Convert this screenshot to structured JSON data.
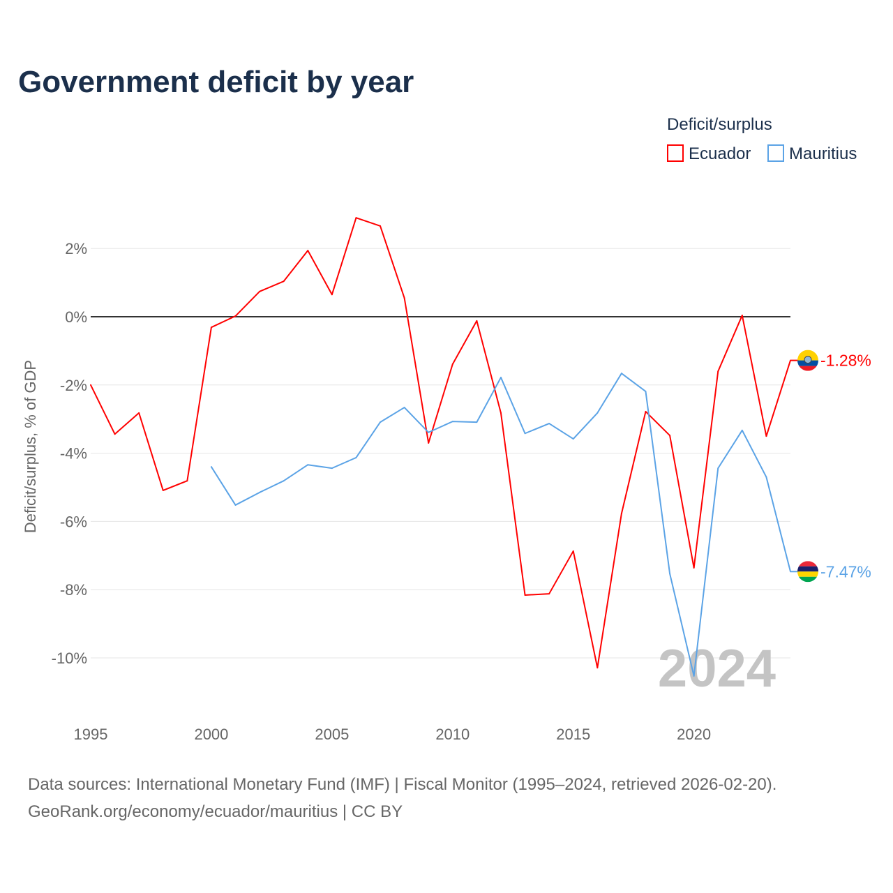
{
  "chart_data": {
    "type": "line",
    "title": "Government deficit by year",
    "ylabel": "Deficit/surplus, % of GDP",
    "xlabel": "",
    "xlim": [
      1995,
      2024
    ],
    "ylim": [
      -11,
      3
    ],
    "x_ticks": [
      1995,
      2000,
      2005,
      2010,
      2015,
      2020
    ],
    "y_ticks": [
      2,
      0,
      -2,
      -4,
      -6,
      -8,
      -10
    ],
    "y_tick_labels": [
      "2%",
      "0%",
      "-2%",
      "-4%",
      "-6%",
      "-8%",
      "-10%"
    ],
    "grid": true,
    "legend_title": "Deficit/surplus",
    "legend_position": "top-right",
    "year_watermark": "2024",
    "series": [
      {
        "name": "Ecuador",
        "color": "#ff0000",
        "end_label": "-1.28%",
        "x": [
          1995,
          1996,
          1997,
          1998,
          1999,
          2000,
          2001,
          2002,
          2003,
          2004,
          2005,
          2006,
          2007,
          2008,
          2009,
          2010,
          2011,
          2012,
          2013,
          2014,
          2015,
          2016,
          2017,
          2018,
          2019,
          2020,
          2021,
          2022,
          2023,
          2024
        ],
        "values": [
          -2.0,
          -3.44,
          -2.82,
          -5.09,
          -4.81,
          -0.31,
          0.02,
          0.74,
          1.04,
          1.94,
          0.65,
          2.9,
          2.66,
          0.55,
          -3.7,
          -1.39,
          -0.12,
          -2.82,
          -8.16,
          -8.12,
          -6.87,
          -10.29,
          -5.77,
          -2.78,
          -3.48,
          -7.36,
          -1.6,
          0.04,
          -3.5,
          -1.28
        ]
      },
      {
        "name": "Mauritius",
        "color": "#5ba3e6",
        "end_label": "-7.47%",
        "x": [
          2000,
          2001,
          2002,
          2003,
          2004,
          2005,
          2006,
          2007,
          2008,
          2009,
          2010,
          2011,
          2012,
          2013,
          2014,
          2015,
          2016,
          2017,
          2018,
          2019,
          2020,
          2021,
          2022,
          2023,
          2024
        ],
        "values": [
          -4.4,
          -5.52,
          -5.15,
          -4.81,
          -4.34,
          -4.44,
          -4.13,
          -3.09,
          -2.66,
          -3.39,
          -3.07,
          -3.09,
          -1.78,
          -3.42,
          -3.13,
          -3.58,
          -2.82,
          -1.66,
          -2.19,
          -7.53,
          -10.53,
          -4.44,
          -3.33,
          -4.7,
          -7.47
        ]
      }
    ]
  },
  "footer": {
    "line1": "Data sources: International Monetary Fund (IMF) | Fiscal Monitor (1995–2024, retrieved 2026-02-20).",
    "line2": "GeoRank.org/economy/ecuador/mauritius | CC BY"
  }
}
